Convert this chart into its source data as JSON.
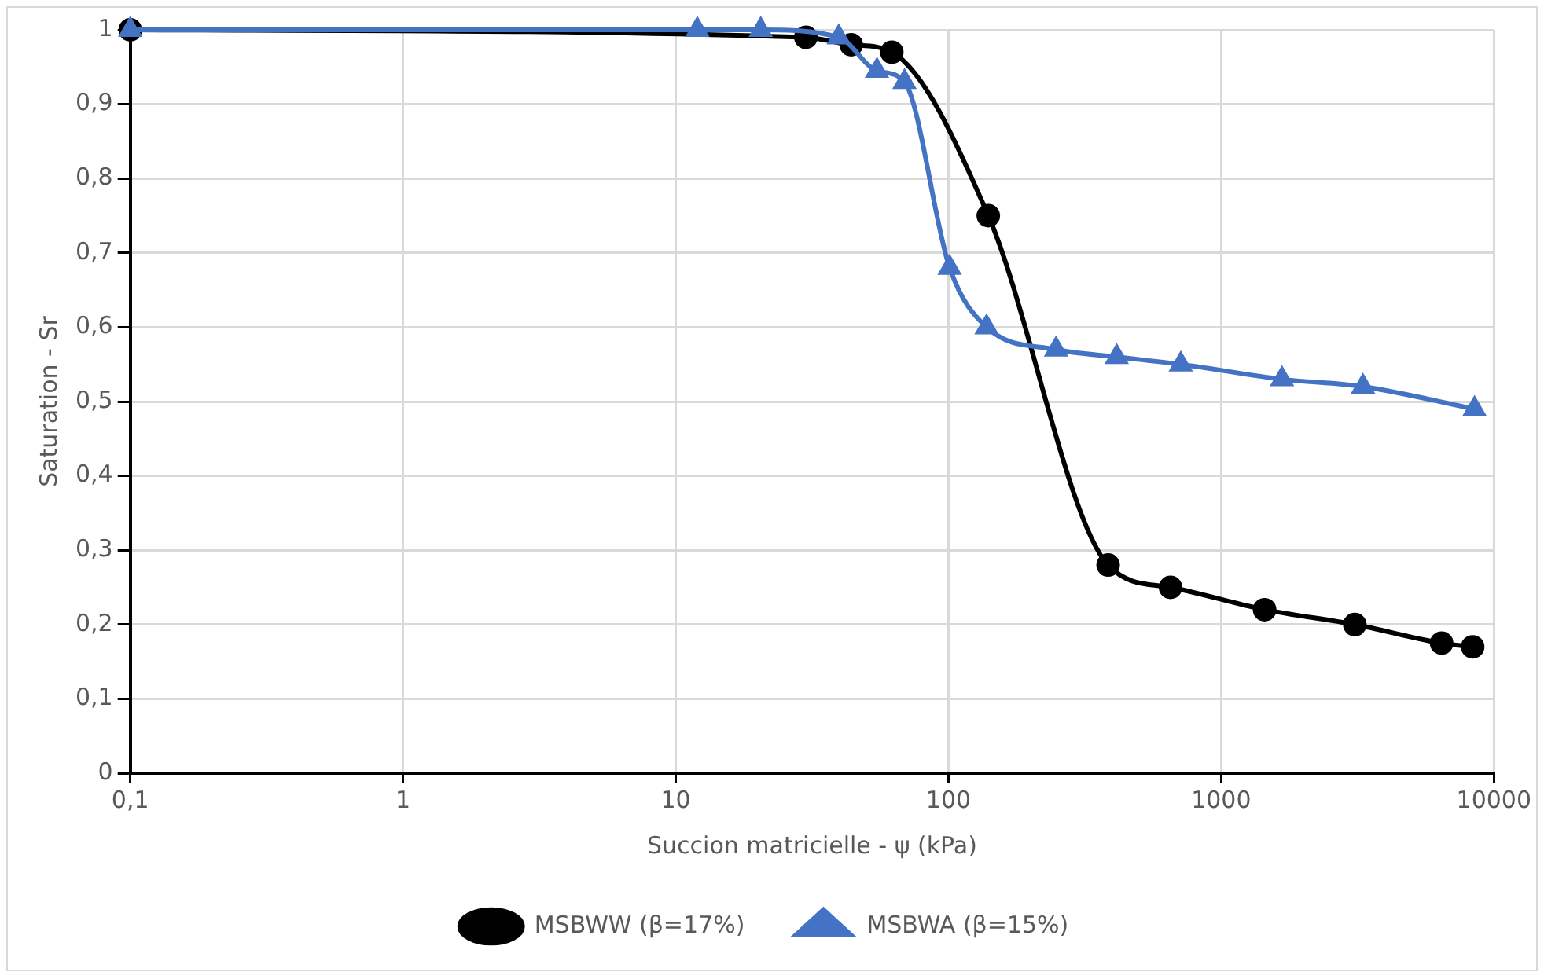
{
  "chart_data": {
    "type": "line",
    "xlabel": "Succion matricielle - ψ (kPa)",
    "ylabel": "Saturation - Sr",
    "log": "x",
    "grid": true,
    "legend": "bottom",
    "line_style": "solid",
    "xlim": [
      0.1,
      10000
    ],
    "xticks": [
      {
        "value": 0.1,
        "label": "0,1"
      },
      1,
      10,
      100,
      1000,
      10000
    ],
    "ylim": [
      0,
      1
    ],
    "yticks": [
      0,
      {
        "value": 0.1,
        "label": "0,1"
      },
      {
        "value": 0.2,
        "label": "0,2"
      },
      {
        "value": 0.3,
        "label": "0,3"
      },
      {
        "value": 0.4,
        "label": "0,4"
      },
      {
        "value": 0.5,
        "label": "0,5"
      },
      {
        "value": 0.6,
        "label": "0,6"
      },
      {
        "value": 0.7,
        "label": "0,7"
      },
      {
        "value": 0.8,
        "label": "0,8"
      },
      {
        "value": 0.9,
        "label": "0,9"
      },
      1
    ],
    "series": [
      {
        "name": "MSBWW (β=17%)",
        "color": "#000000",
        "marker": "circle",
        "x": [
          0.1,
          30,
          44,
          62,
          140,
          385,
          652,
          1443,
          3090,
          6430,
          8360
        ],
        "values": [
          1,
          0.99,
          0.98,
          0.97,
          0.75,
          0.28,
          0.25,
          0.22,
          0.2,
          0.175,
          0.17
        ]
      },
      {
        "name": "MSBWA (β=15%)",
        "color": "#4472c4",
        "marker": "triangle",
        "x": [
          0.1,
          12,
          20.5,
          39.6,
          54.7,
          69,
          101,
          138,
          248,
          414,
          711,
          1671,
          3310,
          8490
        ],
        "values": [
          1,
          1,
          1,
          0.99,
          0.945,
          0.93,
          0.68,
          0.6,
          0.57,
          0.56,
          0.55,
          0.53,
          0.52,
          0.49
        ]
      }
    ]
  }
}
